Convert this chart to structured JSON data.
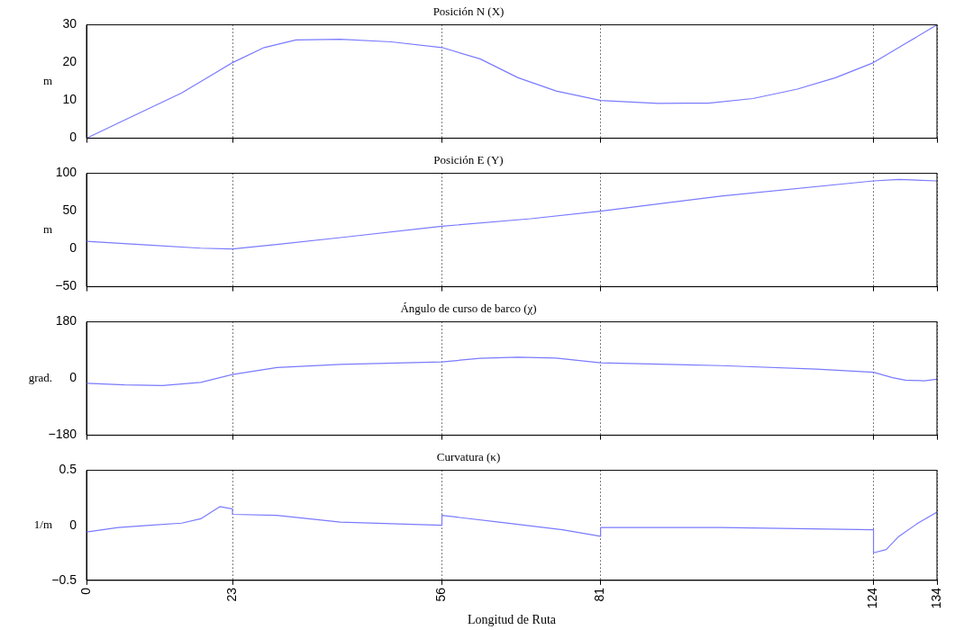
{
  "chart_data": [
    {
      "type": "line",
      "title": "Posición N (X)",
      "ylabel": "m",
      "x": [
        0,
        5,
        10,
        15,
        20,
        23,
        28,
        33,
        40,
        48,
        56,
        62,
        68,
        74,
        81,
        90,
        98,
        105,
        112,
        118,
        124,
        129,
        134
      ],
      "series": [
        {
          "color": "#7a7aff",
          "values": [
            0,
            4,
            8,
            12,
            17,
            20,
            24,
            26,
            26.2,
            25.5,
            24,
            21,
            16,
            12.5,
            10,
            9.2,
            9.3,
            10.5,
            13,
            16,
            20,
            25,
            30
          ]
        }
      ],
      "xlim": [
        0,
        134
      ],
      "xticks": [
        0,
        23,
        56,
        81,
        124,
        134
      ],
      "ylim": [
        0,
        30
      ],
      "yticks": [
        0,
        10,
        20,
        30
      ],
      "grid": "x",
      "tick_labels": "y",
      "marker": "none",
      "line_style": "solid"
    },
    {
      "type": "line",
      "title": "Posición E (Y)",
      "ylabel": "m",
      "x": [
        0,
        10,
        18,
        23,
        30,
        40,
        56,
        70,
        81,
        100,
        124,
        128,
        134
      ],
      "series": [
        {
          "color": "#7a7aff",
          "values": [
            10,
            5,
            1,
            0,
            6,
            15,
            30,
            40,
            50,
            70,
            90,
            92,
            90
          ]
        }
      ],
      "xlim": [
        0,
        134
      ],
      "xticks": [
        0,
        23,
        56,
        81,
        124,
        134
      ],
      "ylim": [
        -50,
        100
      ],
      "yticks": [
        -50,
        0,
        50,
        100
      ],
      "grid": "x",
      "tick_labels": "y",
      "marker": "none",
      "line_style": "solid"
    },
    {
      "type": "line",
      "title": "Ángulo de curso de barco (χ)",
      "ylabel": "grad.",
      "x": [
        0,
        6,
        12,
        18,
        23,
        30,
        40,
        56,
        62,
        68,
        74,
        81,
        100,
        115,
        124,
        127,
        129,
        132,
        134
      ],
      "series": [
        {
          "color": "#7a7aff",
          "values": [
            -15,
            -20,
            -22,
            -12,
            13,
            35,
            45,
            53,
            64,
            68,
            65,
            50,
            41,
            30,
            20,
            3,
            -5,
            -7,
            -2
          ]
        }
      ],
      "xlim": [
        0,
        134
      ],
      "xticks": [
        0,
        23,
        56,
        81,
        124,
        134
      ],
      "ylim": [
        -180,
        180
      ],
      "yticks": [
        -180,
        0,
        180
      ],
      "grid": "x",
      "tick_labels": "y",
      "marker": "none",
      "line_style": "solid"
    },
    {
      "type": "line",
      "title": "Curvatura (κ)",
      "ylabel": "1/m",
      "xlabel": "Longitud de Ruta",
      "x": [
        0,
        5,
        10,
        15,
        18,
        21,
        23,
        23,
        30,
        40,
        56,
        56,
        65,
        75,
        81,
        81,
        100,
        124,
        124,
        126,
        128,
        131,
        134
      ],
      "series": [
        {
          "color": "#7a7aff",
          "values": [
            -0.06,
            -0.02,
            0,
            0.02,
            0.06,
            0.17,
            0.15,
            0.1,
            0.09,
            0.03,
            0,
            0.09,
            0.03,
            -0.04,
            -0.1,
            -0.02,
            -0.02,
            -0.04,
            -0.25,
            -0.22,
            -0.1,
            0.02,
            0.12
          ]
        }
      ],
      "xlim": [
        0,
        134
      ],
      "xticks": [
        0,
        23,
        56,
        81,
        124,
        134
      ],
      "ylim": [
        -0.5,
        0.5
      ],
      "yticks": [
        -0.5,
        0,
        0.5
      ],
      "grid": "x",
      "marker": "none",
      "line_style": "solid"
    }
  ]
}
